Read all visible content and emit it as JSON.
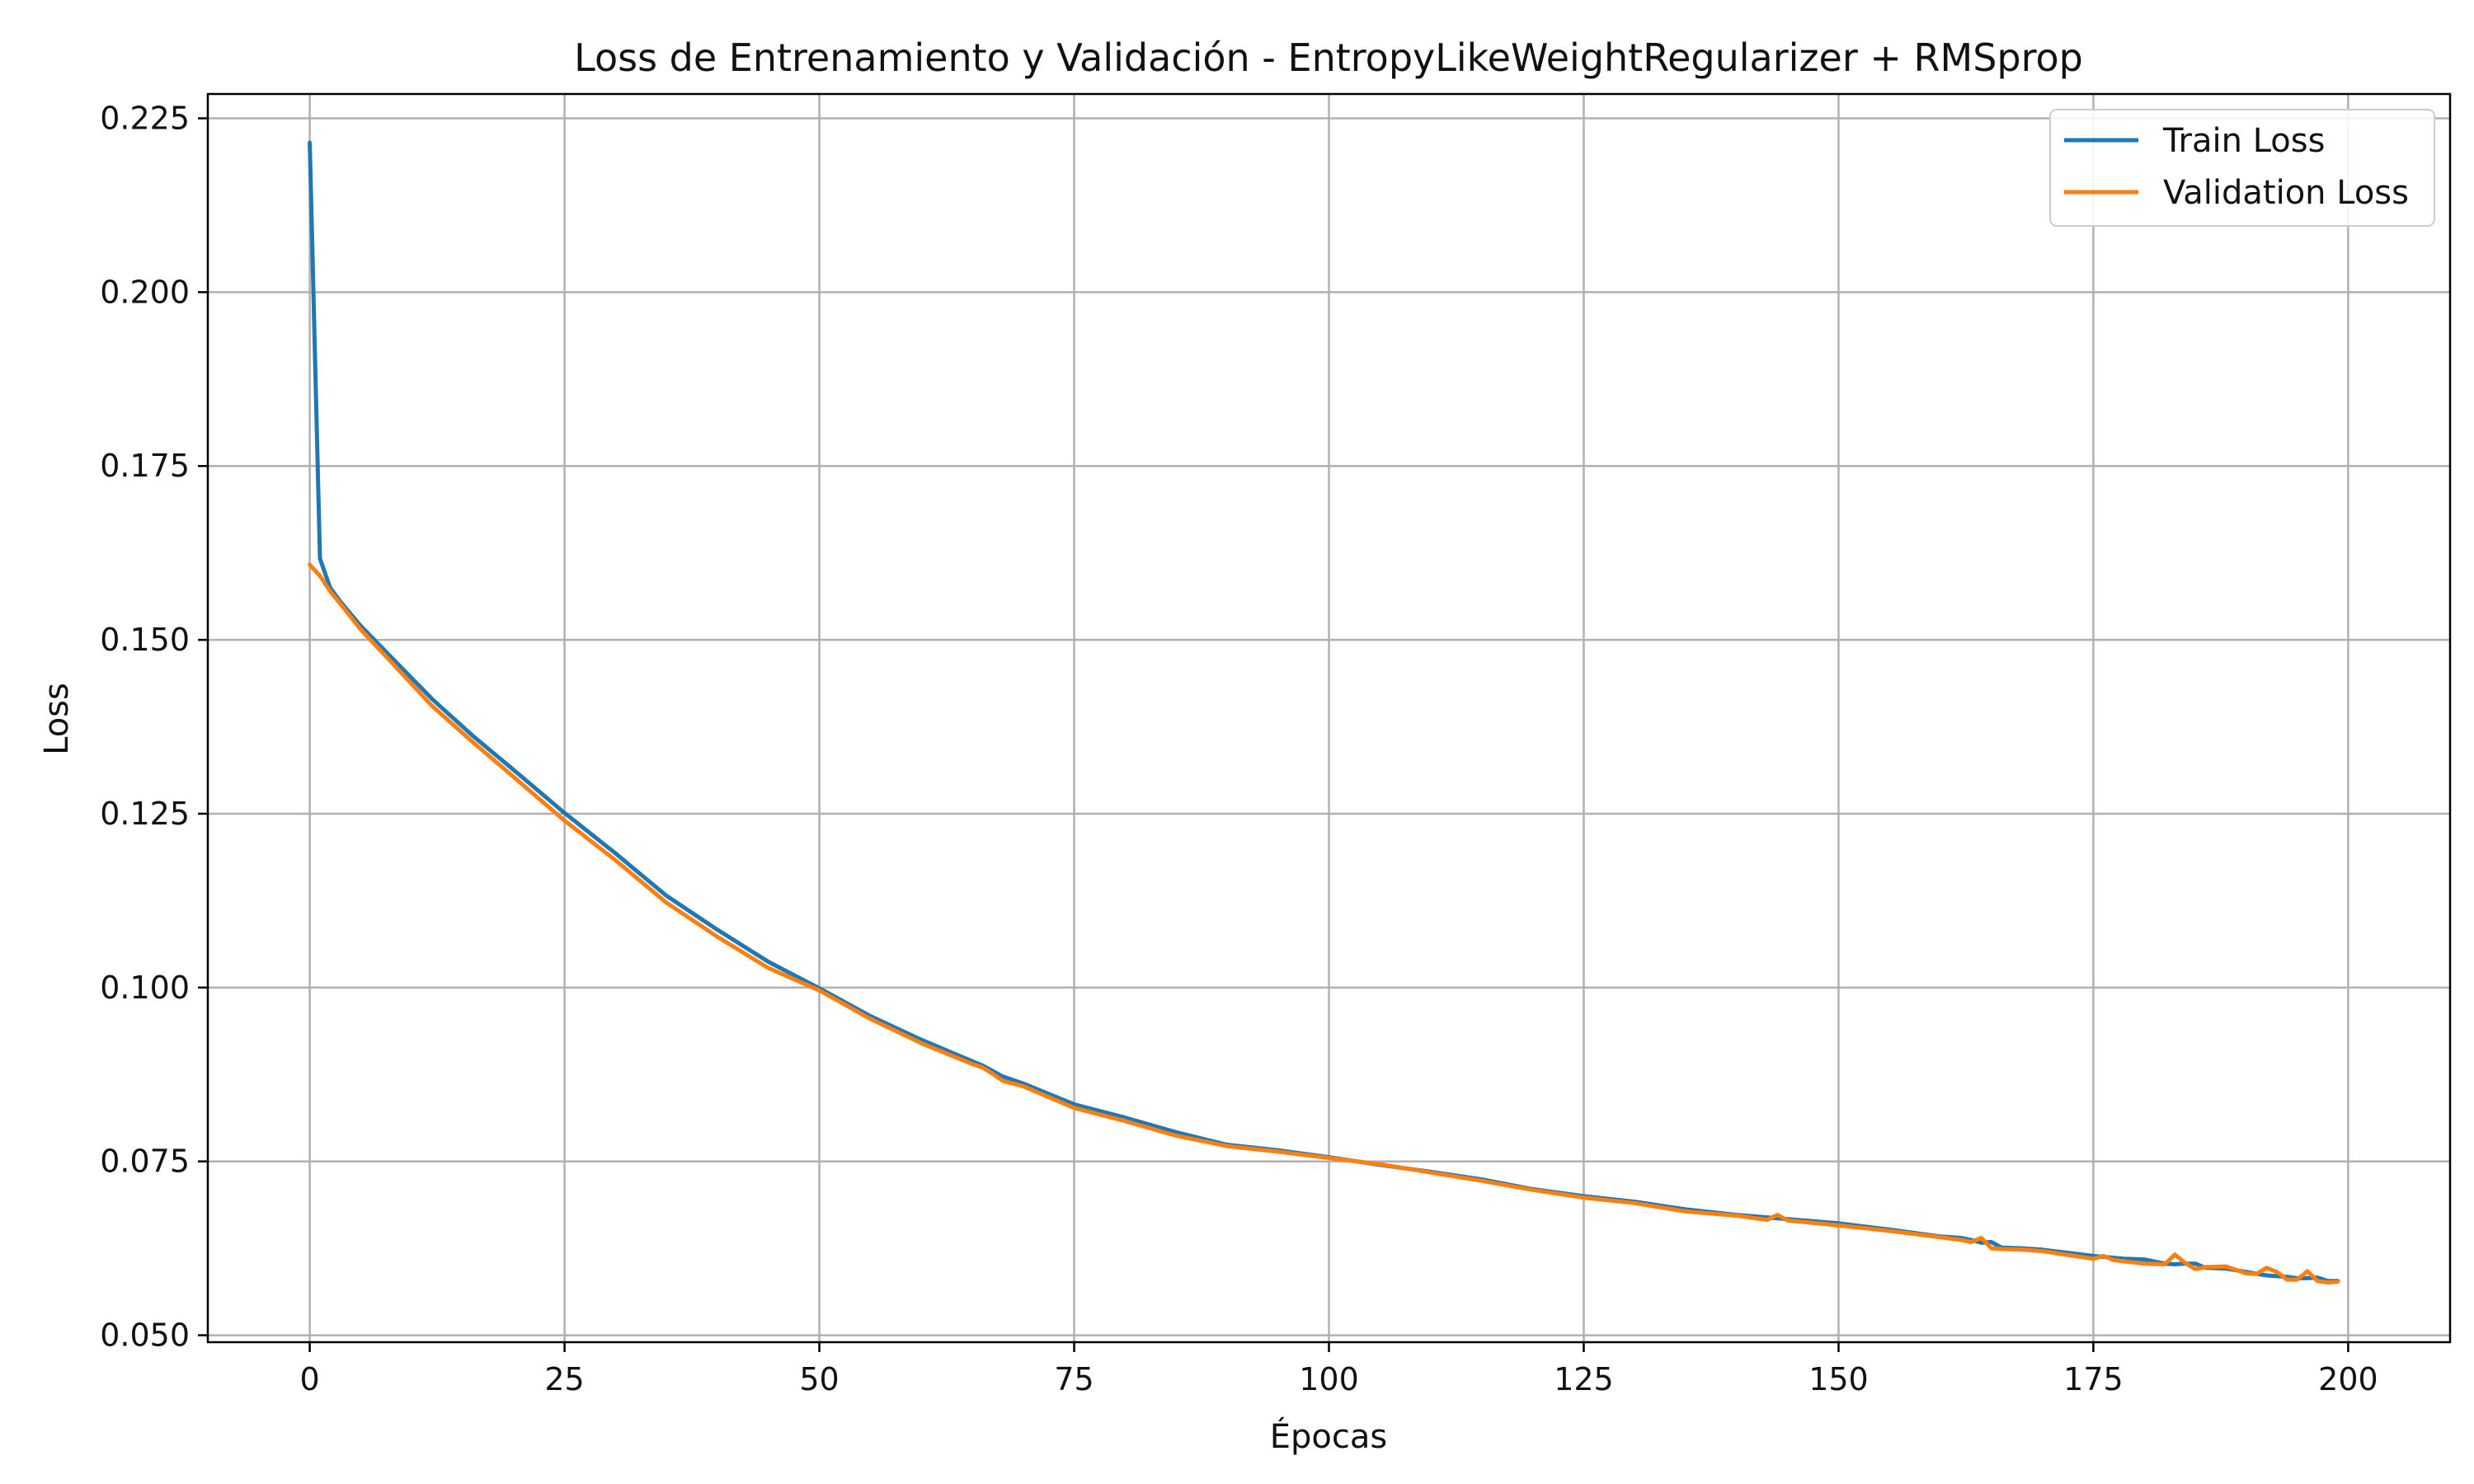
{
  "chart_data": {
    "type": "line",
    "title": "Loss de Entrenamiento y Validación - EntropyLikeWeightRegularizer + RMSprop",
    "xlabel": "Épocas",
    "ylabel": "Loss",
    "xlim": [
      -10,
      210
    ],
    "ylim": [
      0.049,
      0.2285
    ],
    "xticks": [
      0,
      25,
      50,
      75,
      100,
      125,
      150,
      175,
      200
    ],
    "yticks": [
      0.05,
      0.075,
      0.1,
      0.125,
      0.15,
      0.175,
      0.2,
      0.225
    ],
    "xtick_labels": [
      "0",
      "25",
      "50",
      "75",
      "100",
      "125",
      "150",
      "175",
      "200"
    ],
    "ytick_labels": [
      "0.050",
      "0.075",
      "0.100",
      "0.125",
      "0.150",
      "0.175",
      "0.200",
      "0.225"
    ],
    "grid": true,
    "legend_position": "top-right",
    "series": [
      {
        "name": "Train Loss",
        "color": "#1f77b4",
        "x": [
          0,
          1,
          2,
          3,
          5,
          8,
          12,
          16,
          20,
          25,
          30,
          35,
          40,
          45,
          50,
          55,
          60,
          65,
          66,
          67,
          68,
          70,
          75,
          80,
          85,
          90,
          95,
          100,
          105,
          110,
          115,
          120,
          125,
          130,
          135,
          140,
          145,
          150,
          155,
          160,
          162,
          163,
          164,
          165,
          166,
          168,
          170,
          175,
          178,
          180,
          182,
          183,
          184,
          185,
          186,
          188,
          190,
          192,
          193,
          194,
          195,
          196,
          197,
          198,
          199
        ],
        "values": [
          0.2215,
          0.1617,
          0.1575,
          0.1555,
          0.152,
          0.1475,
          0.1415,
          0.1362,
          0.1313,
          0.1251,
          0.1193,
          0.1132,
          0.1083,
          0.1037,
          0.0999,
          0.0959,
          0.0925,
          0.0894,
          0.0888,
          0.088,
          0.0872,
          0.0862,
          0.0832,
          0.0813,
          0.0792,
          0.0774,
          0.0766,
          0.0756,
          0.0745,
          0.0735,
          0.0724,
          0.071,
          0.07,
          0.0692,
          0.0681,
          0.0673,
          0.0667,
          0.0661,
          0.0652,
          0.0642,
          0.064,
          0.0637,
          0.0633,
          0.0634,
          0.0626,
          0.0625,
          0.0623,
          0.0614,
          0.061,
          0.0609,
          0.0603,
          0.0602,
          0.0603,
          0.0603,
          0.0597,
          0.0596,
          0.0591,
          0.0586,
          0.0585,
          0.0584,
          0.0582,
          0.0582,
          0.0583,
          0.0578,
          0.0578
        ]
      },
      {
        "name": "Validation Loss",
        "color": "#ff7f0e",
        "x": [
          0,
          1,
          2,
          3,
          5,
          8,
          12,
          16,
          20,
          25,
          30,
          35,
          40,
          45,
          50,
          55,
          60,
          65,
          66,
          67,
          68,
          70,
          75,
          80,
          85,
          90,
          95,
          100,
          105,
          110,
          115,
          120,
          125,
          130,
          135,
          140,
          143,
          144,
          145,
          150,
          155,
          160,
          162,
          163,
          164,
          165,
          166,
          168,
          170,
          175,
          176,
          177,
          180,
          182,
          183,
          184,
          185,
          186,
          188,
          190,
          191,
          192,
          193,
          194,
          195,
          196,
          197,
          198,
          199
        ],
        "values": [
          0.1608,
          0.1592,
          0.157,
          0.1552,
          0.1515,
          0.1468,
          0.1405,
          0.1353,
          0.1303,
          0.124,
          0.1183,
          0.1122,
          0.1073,
          0.1028,
          0.0996,
          0.0955,
          0.092,
          0.089,
          0.0885,
          0.0876,
          0.0866,
          0.0858,
          0.0827,
          0.0808,
          0.0787,
          0.0772,
          0.0764,
          0.0755,
          0.0746,
          0.0734,
          0.0722,
          0.0709,
          0.0698,
          0.069,
          0.0678,
          0.0672,
          0.0666,
          0.0673,
          0.0665,
          0.0658,
          0.065,
          0.0641,
          0.0637,
          0.0634,
          0.064,
          0.0625,
          0.0624,
          0.0623,
          0.0621,
          0.061,
          0.0614,
          0.0608,
          0.0603,
          0.0602,
          0.0616,
          0.0604,
          0.0595,
          0.0598,
          0.0599,
          0.0589,
          0.0588,
          0.0597,
          0.0591,
          0.058,
          0.058,
          0.0592,
          0.0578,
          0.0576,
          0.0577
        ]
      }
    ]
  }
}
